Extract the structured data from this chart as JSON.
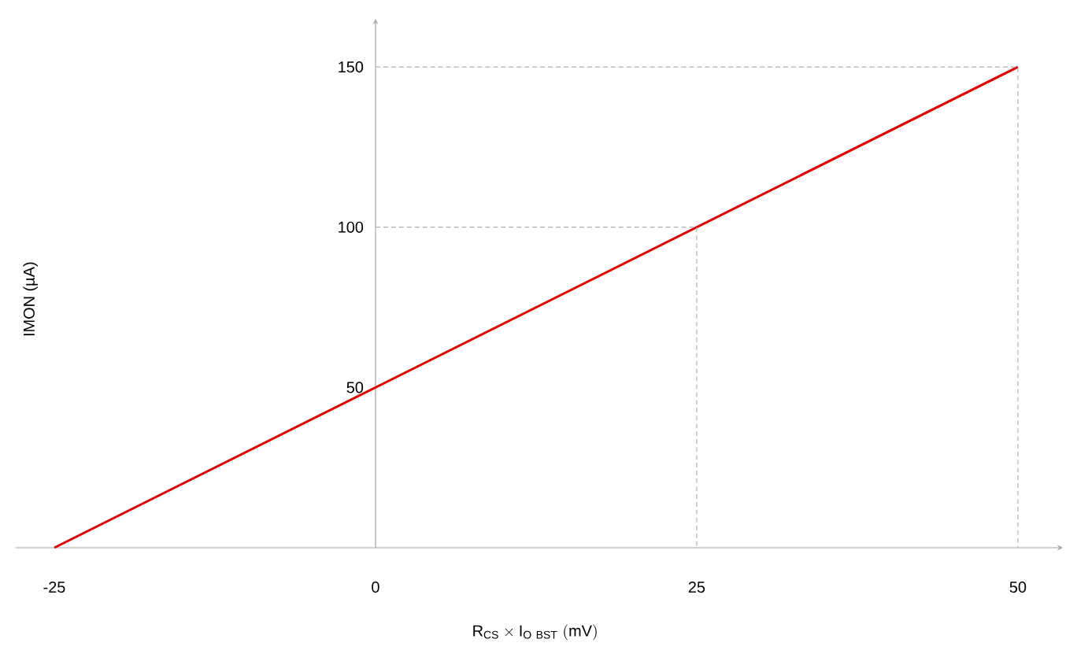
{
  "chart_data": {
    "type": "line",
    "xlabel": "\\mathrm{R}_{\\mathrm{CS}}\\times\\mathrm{I}_{\\mathrm{O\\ BST}}\\ \\mathrm{(mV)}",
    "ylabel": "IMON (µA)",
    "xlim": [
      -28,
      53.5
    ],
    "ylim": [
      0,
      165
    ],
    "xticks": [
      -25,
      0,
      25,
      50
    ],
    "yticks": [
      50,
      100,
      150
    ],
    "grid": false,
    "series": [
      {
        "x": [
          -25,
          50
        ],
        "values": [
          0,
          150
        ],
        "color": "#e00000",
        "line_style": "solid"
      },
      {
        "x": [
          0,
          25,
          25
        ],
        "values": [
          100,
          100,
          0
        ],
        "color": "#b0b0b0",
        "line_style": "dashed"
      },
      {
        "x": [
          0,
          50,
          50
        ],
        "values": [
          150,
          150,
          0
        ],
        "color": "#b0b0b0",
        "line_style": "dashed"
      }
    ]
  }
}
